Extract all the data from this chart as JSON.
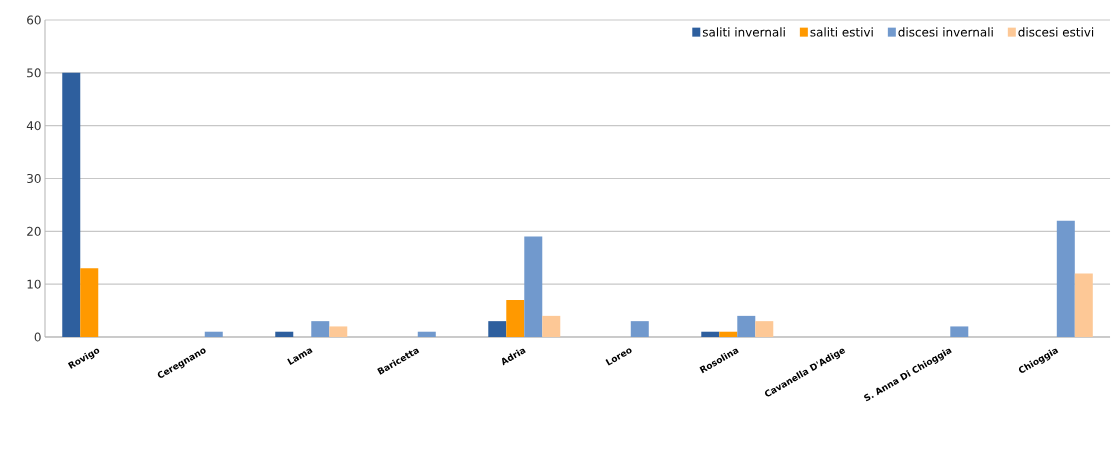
{
  "chart_data": {
    "type": "bar",
    "categories": [
      "Rovigo",
      "Ceregnano",
      "Lama",
      "Baricetta",
      "Adria",
      "Loreo",
      "Rosolina",
      "Cavanella D'Adige",
      "S. Anna Di Chioggia",
      "Chioggia"
    ],
    "series": [
      {
        "name": "saliti invernali",
        "color": "#2e5f9e",
        "values": [
          50,
          0,
          1,
          0,
          3,
          0,
          1,
          0,
          0,
          0
        ]
      },
      {
        "name": "saliti estivi",
        "color": "#ff9900",
        "values": [
          13,
          0,
          0,
          0,
          7,
          0,
          1,
          0,
          0,
          0
        ]
      },
      {
        "name": "discesi invernali",
        "color": "#7199cd",
        "values": [
          0,
          1,
          3,
          1,
          19,
          3,
          4,
          0,
          2,
          22
        ]
      },
      {
        "name": "discesi estivi",
        "color": "#fdc896",
        "values": [
          0,
          0,
          2,
          0,
          4,
          0,
          3,
          0,
          0,
          12
        ]
      }
    ],
    "ylim": [
      0,
      60
    ],
    "yticks": [
      0,
      10,
      20,
      30,
      40,
      50,
      60
    ],
    "grid": "y",
    "legend": "top right"
  }
}
